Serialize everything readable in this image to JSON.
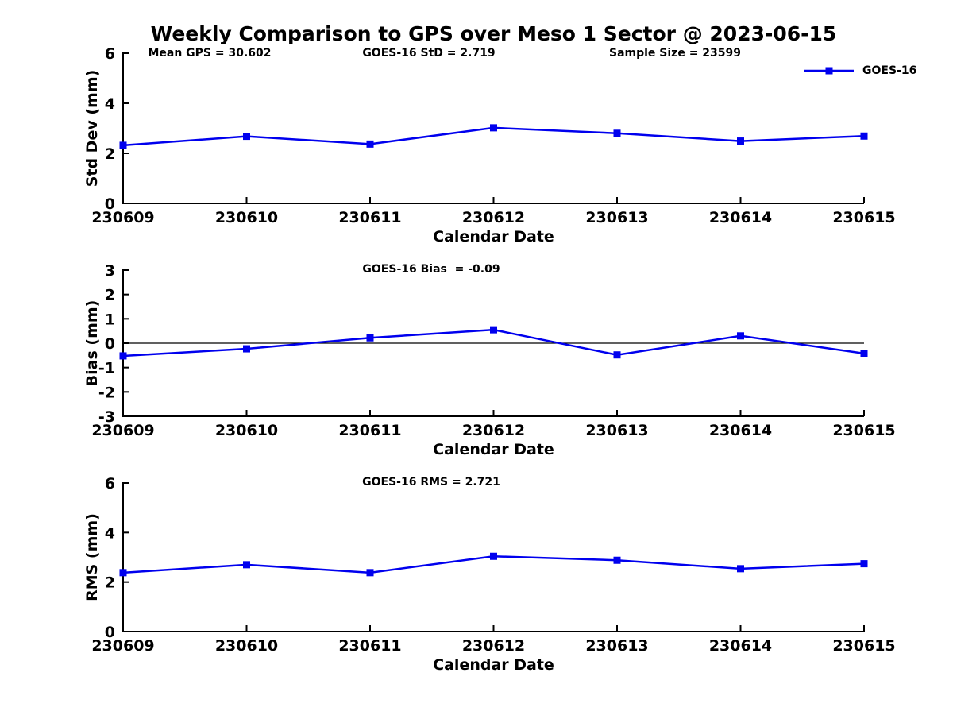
{
  "page": {
    "title": "Weekly Comparison to GPS over Meso 1 Sector @ 2023-06-15"
  },
  "annotations": {
    "mean_gps": "Mean GPS = 30.602",
    "goes_std": "GOES-16 StD = 2.719",
    "sample_size": "Sample Size = 23599"
  },
  "legend": {
    "label": "GOES-16",
    "position": "top-right, no box",
    "marker": "filled-square"
  },
  "colors": {
    "series": "#0000ee",
    "axis": "#000000",
    "zero_line": "#000000",
    "background": "#ffffff"
  },
  "chart_data": [
    {
      "type": "line",
      "name": "std-dev",
      "categories": [
        "230609",
        "230610",
        "230611",
        "230612",
        "230613",
        "230614",
        "230615"
      ],
      "series": [
        {
          "name": "GOES-16",
          "values": [
            2.32,
            2.68,
            2.37,
            3.02,
            2.8,
            2.49,
            2.69
          ]
        }
      ],
      "xlabel": "Calendar Date",
      "ylabel": "Std Dev (mm)",
      "ylim": [
        0,
        6
      ],
      "yticks": [
        6,
        4,
        2,
        0
      ],
      "grid": false,
      "zero_line": false,
      "subtitle": ""
    },
    {
      "type": "line",
      "name": "bias",
      "subtitle": "GOES-16 Bias  = -0.09",
      "categories": [
        "230609",
        "230610",
        "230611",
        "230612",
        "230613",
        "230614",
        "230615"
      ],
      "series": [
        {
          "name": "GOES-16",
          "values": [
            -0.52,
            -0.23,
            0.22,
            0.55,
            -0.48,
            0.3,
            -0.42
          ]
        }
      ],
      "xlabel": "Calendar Date",
      "ylabel": "Bias (mm)",
      "ylim": [
        -3,
        3
      ],
      "yticks": [
        3,
        2,
        1,
        0,
        -1,
        -2,
        -3
      ],
      "grid": false,
      "zero_line": true
    },
    {
      "type": "line",
      "name": "rms",
      "subtitle": "GOES-16 RMS = 2.721",
      "categories": [
        "230609",
        "230610",
        "230611",
        "230612",
        "230613",
        "230614",
        "230615"
      ],
      "series": [
        {
          "name": "GOES-16",
          "values": [
            2.38,
            2.7,
            2.38,
            3.04,
            2.88,
            2.54,
            2.74
          ]
        }
      ],
      "xlabel": "Calendar Date",
      "ylabel": "RMS (mm)",
      "ylim": [
        0,
        6
      ],
      "yticks": [
        6,
        4,
        2,
        0
      ],
      "grid": false,
      "zero_line": false
    }
  ]
}
